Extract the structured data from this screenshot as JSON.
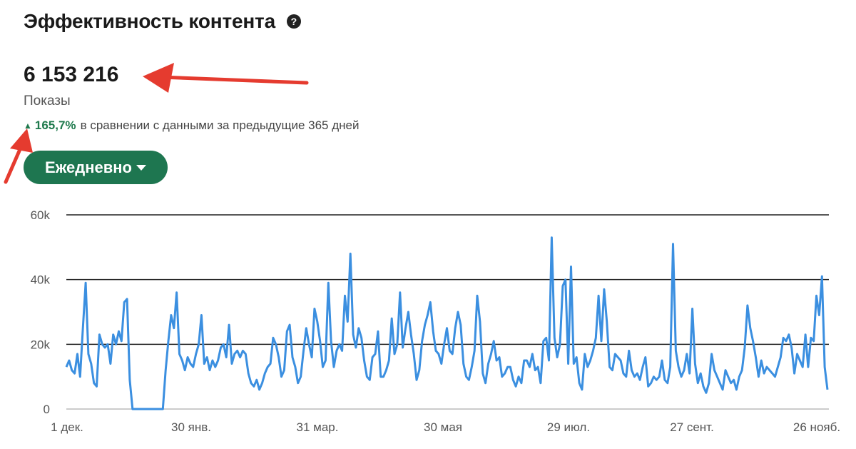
{
  "header": {
    "title": "Эффективность контента",
    "help_icon": "help-circle-icon"
  },
  "metric": {
    "value": "6 153 216",
    "label": "Показы",
    "change_pct": "165,7%",
    "change_text": "в сравнении с данными за предыдущие 365 дней",
    "trend_icon": "triangle-up-icon"
  },
  "frequency_button": {
    "label": "Ежедневно"
  },
  "colors": {
    "accent": "#1e7650",
    "line": "#3b8fe0",
    "arrow": "#e53b2f",
    "positive": "#1f7a4d"
  },
  "chart_data": {
    "type": "line",
    "xlabel": "",
    "ylabel": "",
    "ylim": [
      0,
      60000
    ],
    "y_ticks": [
      "0",
      "20k",
      "40k",
      "60k"
    ],
    "x_ticks": [
      "1 дек.",
      "30 янв.",
      "31 мар.",
      "30 мая",
      "29 июл.",
      "27 сент.",
      "26 нояб."
    ],
    "grid": true,
    "series": [
      {
        "values": [
          13000,
          15000,
          12000,
          11000,
          17000,
          10000,
          25000,
          39000,
          17000,
          14000,
          8000,
          7000,
          23000,
          20000,
          19000,
          20000,
          14000,
          23000,
          20000,
          24000,
          21000,
          33000,
          34000,
          9000,
          0,
          0,
          0,
          0,
          0,
          0,
          0,
          0,
          0,
          0,
          0,
          0,
          12000,
          21000,
          29000,
          25000,
          36000,
          17000,
          15000,
          12000,
          16000,
          14000,
          13000,
          17000,
          20000,
          29000,
          14000,
          16000,
          12000,
          15000,
          13000,
          15000,
          19000,
          20000,
          16000,
          26000,
          14000,
          17000,
          18000,
          16000,
          18000,
          17000,
          11000,
          8000,
          7000,
          9000,
          6000,
          8000,
          11000,
          13000,
          14000,
          22000,
          20000,
          16000,
          10000,
          12000,
          24000,
          26000,
          16000,
          13000,
          8000,
          10000,
          18000,
          25000,
          20000,
          16000,
          31000,
          27000,
          21000,
          13000,
          15000,
          39000,
          21000,
          13000,
          18000,
          20000,
          18000,
          35000,
          27000,
          48000,
          23000,
          19000,
          25000,
          22000,
          15000,
          10000,
          9000,
          16000,
          17000,
          24000,
          10000,
          10000,
          12000,
          15000,
          28000,
          17000,
          20000,
          36000,
          19000,
          25000,
          30000,
          23000,
          17000,
          9000,
          12000,
          21000,
          26000,
          29000,
          33000,
          24000,
          18000,
          17000,
          14000,
          20000,
          25000,
          18000,
          17000,
          25000,
          30000,
          26000,
          14000,
          10000,
          9000,
          13000,
          18000,
          35000,
          27000,
          11000,
          8000,
          14000,
          17000,
          21000,
          15000,
          16000,
          10000,
          11000,
          13000,
          13000,
          9000,
          7000,
          10000,
          8000,
          15000,
          15000,
          13000,
          17000,
          12000,
          13000,
          8000,
          21000,
          22000,
          15000,
          53000,
          22000,
          16000,
          20000,
          38000,
          40000,
          14000,
          44000,
          14000,
          16000,
          8000,
          6000,
          17000,
          13000,
          15000,
          18000,
          22000,
          35000,
          21000,
          37000,
          27000,
          13000,
          12000,
          17000,
          16000,
          15000,
          11000,
          10000,
          18000,
          12000,
          10000,
          11000,
          9000,
          13000,
          16000,
          7000,
          8000,
          10000,
          9000,
          10000,
          15000,
          9000,
          8000,
          13000,
          51000,
          18000,
          13000,
          10000,
          12000,
          17000,
          11000,
          31000,
          14000,
          8000,
          11000,
          7000,
          5000,
          8000,
          17000,
          12000,
          10000,
          8000,
          6000,
          12000,
          10000,
          8000,
          9000,
          6000,
          10000,
          12000,
          19000,
          32000,
          25000,
          21000,
          16000,
          10000,
          15000,
          11000,
          13000,
          12000,
          11000,
          10000,
          13000,
          16000,
          22000,
          21000,
          23000,
          19000,
          11000,
          17000,
          15000,
          13000,
          23000,
          13000,
          22000,
          21000,
          35000,
          29000,
          41000,
          13000,
          6000
        ]
      }
    ]
  }
}
